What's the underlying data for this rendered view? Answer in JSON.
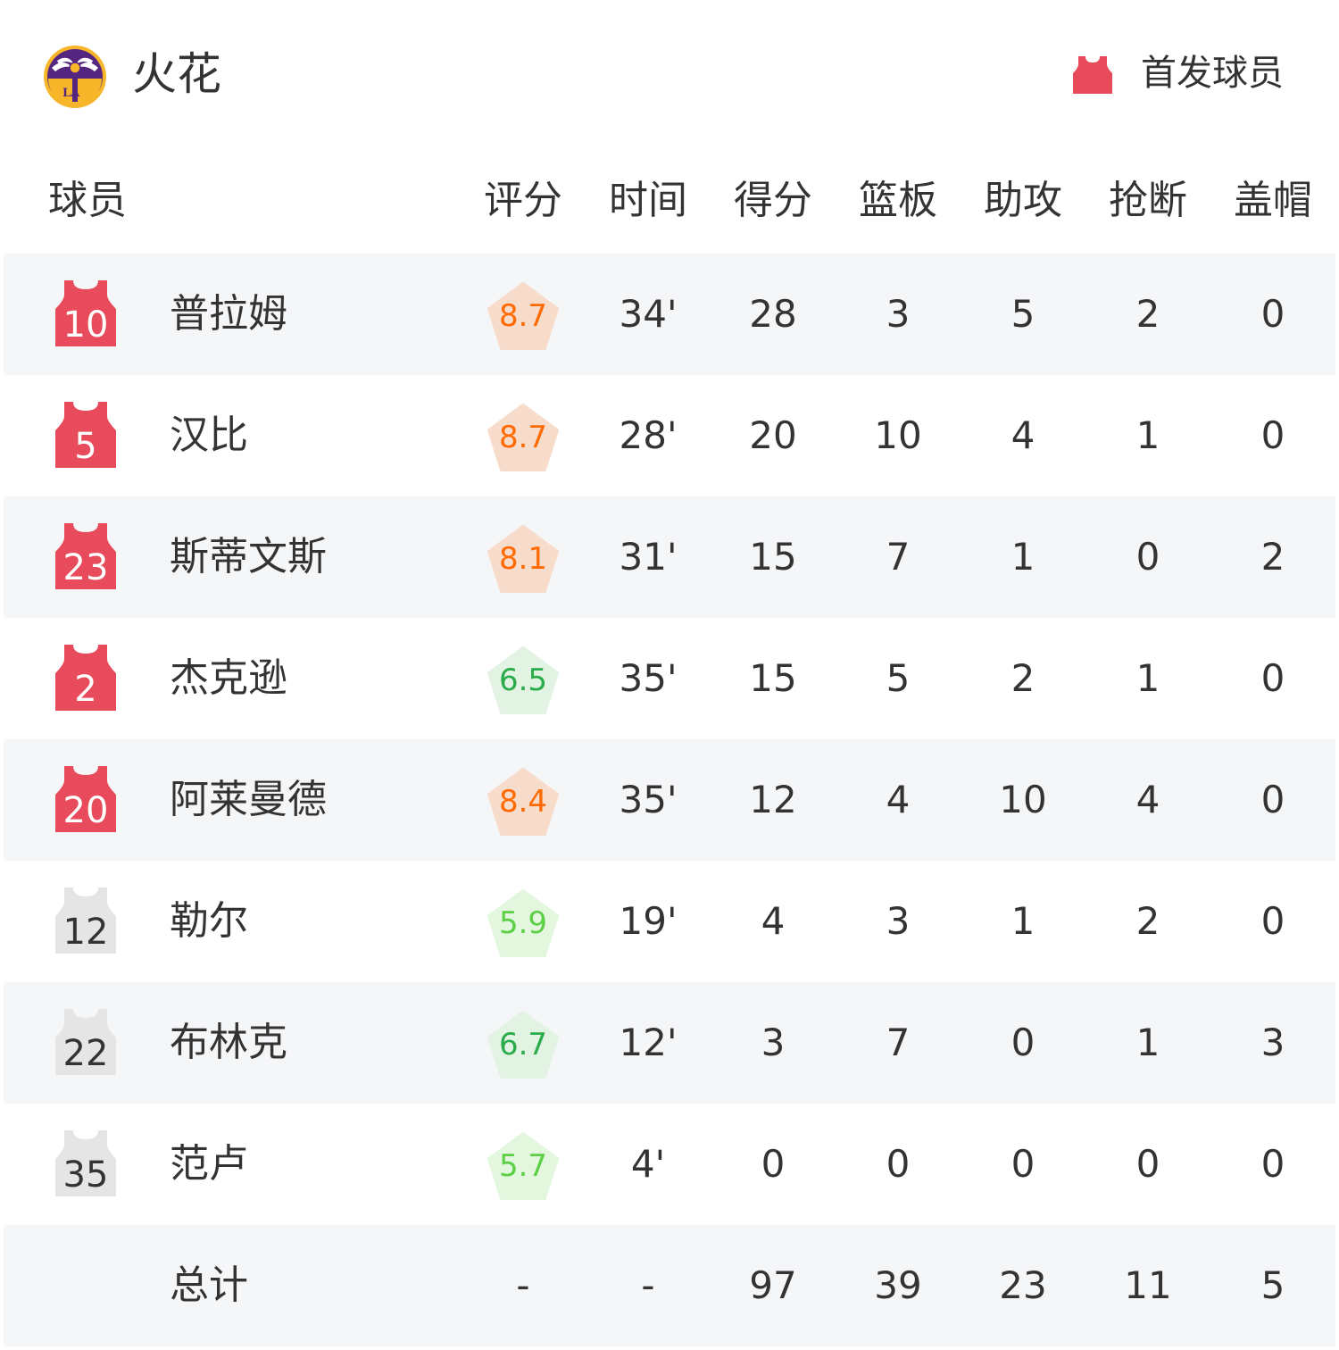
{
  "header": {
    "team_name": "火花",
    "logo_text": "LA",
    "starter_label": "首发球员",
    "starter_icon": "jersey-icon",
    "starter_icon_color": "#e84c5c"
  },
  "columns": {
    "player": "球员",
    "stats": [
      "评分",
      "时间",
      "得分",
      "篮板",
      "助攻",
      "抢断",
      "盖帽"
    ]
  },
  "colors": {
    "starter_jersey": "#e84c5c",
    "bench_jersey": "#e5e5e5",
    "rating_high_text": "#ff6a00",
    "rating_high_bg": "#f8dccb",
    "rating_mid_text": "#2aac4a",
    "rating_mid_bg": "#e2f3e3",
    "rating_low_text": "#5ccf46",
    "rating_low_bg": "#e3f7df",
    "row_alt_bg": "#f5f6f8"
  },
  "players": [
    {
      "number": "10",
      "name": "普拉姆",
      "starter": true,
      "rating": "8.7",
      "tier": "high",
      "stats": [
        "34'",
        "28",
        "3",
        "5",
        "2",
        "0"
      ]
    },
    {
      "number": "5",
      "name": "汉比",
      "starter": true,
      "rating": "8.7",
      "tier": "high",
      "stats": [
        "28'",
        "20",
        "10",
        "4",
        "1",
        "0"
      ]
    },
    {
      "number": "23",
      "name": "斯蒂文斯",
      "starter": true,
      "rating": "8.1",
      "tier": "high",
      "stats": [
        "31'",
        "15",
        "7",
        "1",
        "0",
        "2"
      ]
    },
    {
      "number": "2",
      "name": "杰克逊",
      "starter": true,
      "rating": "6.5",
      "tier": "mid",
      "stats": [
        "35'",
        "15",
        "5",
        "2",
        "1",
        "0"
      ]
    },
    {
      "number": "20",
      "name": "阿莱曼德",
      "starter": true,
      "rating": "8.4",
      "tier": "high",
      "stats": [
        "35'",
        "12",
        "4",
        "10",
        "4",
        "0"
      ]
    },
    {
      "number": "12",
      "name": "勒尔",
      "starter": false,
      "rating": "5.9",
      "tier": "low",
      "stats": [
        "19'",
        "4",
        "3",
        "1",
        "2",
        "0"
      ]
    },
    {
      "number": "22",
      "name": "布林克",
      "starter": false,
      "rating": "6.7",
      "tier": "mid",
      "stats": [
        "12'",
        "3",
        "7",
        "0",
        "1",
        "3"
      ]
    },
    {
      "number": "35",
      "name": "范卢",
      "starter": false,
      "rating": "5.7",
      "tier": "low",
      "stats": [
        "4'",
        "0",
        "0",
        "0",
        "0",
        "0"
      ]
    }
  ],
  "totals": {
    "label": "总计",
    "values": [
      "-",
      "-",
      "97",
      "39",
      "23",
      "11",
      "5"
    ]
  }
}
